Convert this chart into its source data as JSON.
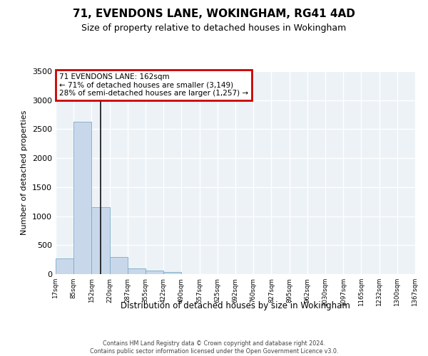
{
  "title": "71, EVENDONS LANE, WOKINGHAM, RG41 4AD",
  "subtitle": "Size of property relative to detached houses in Wokingham",
  "xlabel": "Distribution of detached houses by size in Wokingham",
  "ylabel": "Number of detached properties",
  "bar_values": [
    270,
    2630,
    1150,
    290,
    100,
    60,
    40,
    5,
    0,
    0,
    0,
    0,
    0,
    0,
    0,
    0,
    0,
    0,
    0,
    0
  ],
  "bar_labels": [
    "17sqm",
    "85sqm",
    "152sqm",
    "220sqm",
    "287sqm",
    "355sqm",
    "422sqm",
    "490sqm",
    "557sqm",
    "625sqm",
    "692sqm",
    "760sqm",
    "827sqm",
    "895sqm",
    "962sqm",
    "1030sqm",
    "1097sqm",
    "1165sqm",
    "1232sqm",
    "1300sqm",
    "1367sqm"
  ],
  "bar_color": "#c8d8ea",
  "bar_edge_color": "#7baac8",
  "vline_index": 2,
  "vline_color": "#111111",
  "ylim": [
    0,
    3500
  ],
  "yticks": [
    0,
    500,
    1000,
    1500,
    2000,
    2500,
    3000,
    3500
  ],
  "annotation_text": "71 EVENDONS LANE: 162sqm\n← 71% of detached houses are smaller (3,149)\n28% of semi-detached houses are larger (1,257) →",
  "annotation_box_edgecolor": "#cc0000",
  "bg_color": "#edf2f7",
  "grid_color": "#ffffff",
  "footer_line1": "Contains HM Land Registry data © Crown copyright and database right 2024.",
  "footer_line2": "Contains public sector information licensed under the Open Government Licence v3.0."
}
